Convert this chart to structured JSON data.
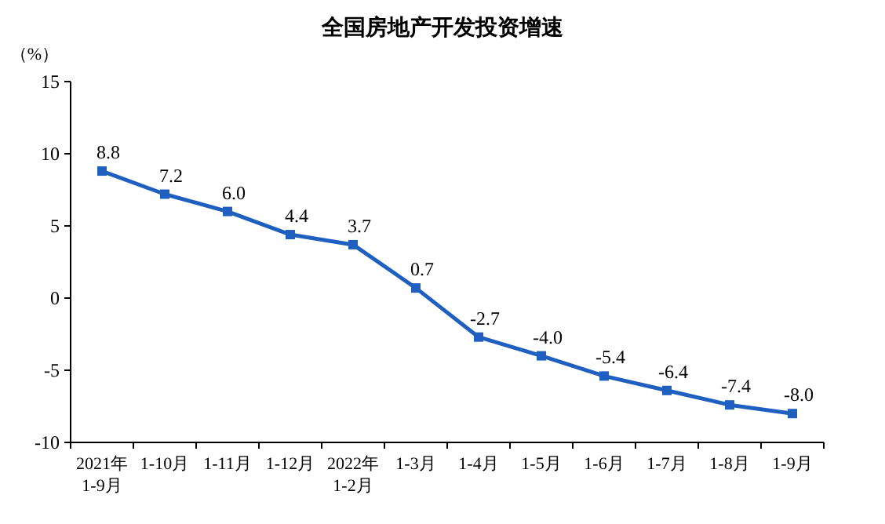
{
  "chart_data": {
    "type": "line",
    "title": "全国房地产开发投资增速",
    "ylabel": "（%）",
    "categories": [
      "2021年\n1-9月",
      "1-10月",
      "1-11月",
      "1-12月",
      "2022年\n1-2月",
      "1-3月",
      "1-4月",
      "1-5月",
      "1-6月",
      "1-7月",
      "1-8月",
      "1-9月"
    ],
    "series": [
      {
        "color": "#1f5fbf",
        "values": [
          8.8,
          7.2,
          6.0,
          4.4,
          3.7,
          0.7,
          -2.7,
          -4.0,
          -5.4,
          -6.4,
          -7.4,
          -8.0
        ],
        "value_labels": [
          "8.8",
          "7.2",
          "6.0",
          "4.4",
          "3.7",
          "0.7",
          "-2.7",
          "-4.0",
          "-5.4",
          "-6.4",
          "-7.4",
          "-8.0"
        ]
      }
    ],
    "ylim": [
      -10,
      15
    ],
    "yticks": [
      -10,
      -5,
      0,
      5,
      10,
      15
    ],
    "marker": "square",
    "grid": false
  }
}
